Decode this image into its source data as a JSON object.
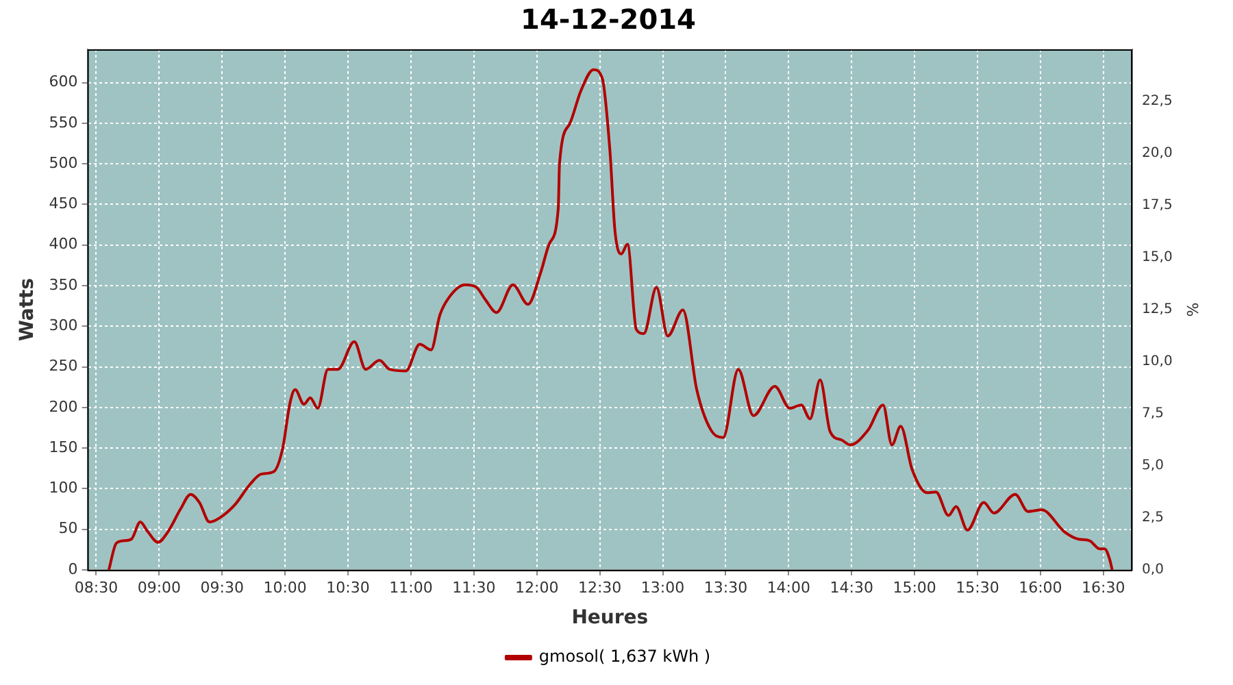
{
  "chart_data": {
    "type": "line",
    "title": "14-12-2014",
    "xlabel": "Heures",
    "ylabel": "Watts",
    "y2label": "%",
    "x": [
      8.6,
      8.66,
      8.72,
      8.78,
      8.85,
      8.91,
      8.99,
      9.07,
      9.17,
      9.25,
      9.32,
      9.4,
      9.48,
      9.6,
      9.72,
      9.81,
      9.91,
      9.98,
      10.04,
      10.08,
      10.15,
      10.2,
      10.26,
      10.34,
      10.42,
      10.55,
      10.64,
      10.75,
      10.83,
      10.96,
      11.07,
      11.16,
      11.23,
      11.3,
      11.43,
      11.52,
      11.59,
      11.68,
      11.81,
      11.93,
      12.03,
      12.1,
      12.17,
      12.18,
      12.26,
      12.35,
      12.45,
      12.52,
      12.58,
      12.62,
      12.67,
      12.72,
      12.79,
      12.85,
      12.95,
      13.04,
      13.16,
      13.27,
      13.38,
      13.48,
      13.6,
      13.72,
      13.89,
      14.01,
      14.1,
      14.17,
      14.25,
      14.33,
      14.42,
      14.49,
      14.63,
      14.75,
      14.82,
      14.89,
      14.98,
      15.1,
      15.17,
      15.27,
      15.33,
      15.42,
      15.55,
      15.63,
      15.8,
      15.9,
      16.01,
      16.19,
      16.3,
      16.39,
      16.47,
      16.51,
      16.55,
      16.57
    ],
    "series": [
      {
        "name": "gmosol( 1,637 kWh )",
        "color": "#b20000",
        "values": [
          0,
          33,
          36,
          38,
          59,
          47,
          34,
          47,
          75,
          93,
          83,
          59,
          64,
          80,
          105,
          118,
          121,
          149,
          206,
          222,
          204,
          212,
          199,
          247,
          247,
          281,
          247,
          258,
          247,
          245,
          278,
          271,
          314,
          335,
          351,
          348,
          333,
          317,
          351,
          327,
          366,
          402,
          445,
          500,
          549,
          590,
          616,
          605,
          517,
          418,
          389,
          401,
          296,
          291,
          348,
          288,
          320,
          222,
          173,
          163,
          247,
          190,
          226,
          199,
          203,
          186,
          234,
          170,
          160,
          154,
          172,
          203,
          154,
          177,
          124,
          95,
          96,
          67,
          78,
          49,
          83,
          70,
          93,
          72,
          74,
          47,
          38,
          36,
          26,
          26,
          13,
          0
        ]
      }
    ],
    "xlim": [
      8.43,
      16.73
    ],
    "xticks": [
      {
        "value": 8.5,
        "label": "08:30"
      },
      {
        "value": 9,
        "label": "09:00"
      },
      {
        "value": 9.5,
        "label": "09:30"
      },
      {
        "value": 10,
        "label": "10:00"
      },
      {
        "value": 10.5,
        "label": "10:30"
      },
      {
        "value": 11,
        "label": "11:00"
      },
      {
        "value": 11.5,
        "label": "11:30"
      },
      {
        "value": 12,
        "label": "12:00"
      },
      {
        "value": 12.5,
        "label": "12:30"
      },
      {
        "value": 13,
        "label": "13:00"
      },
      {
        "value": 13.5,
        "label": "13:30"
      },
      {
        "value": 14,
        "label": "14:00"
      },
      {
        "value": 14.5,
        "label": "14:30"
      },
      {
        "value": 15,
        "label": "15:00"
      },
      {
        "value": 15.5,
        "label": "15:30"
      },
      {
        "value": 16,
        "label": "16:00"
      },
      {
        "value": 16.5,
        "label": "16:30"
      }
    ],
    "ylim": [
      0,
      641
    ],
    "yticks": [
      0,
      50,
      100,
      150,
      200,
      250,
      300,
      350,
      400,
      450,
      500,
      550,
      600
    ],
    "y2lim": [
      0,
      25
    ],
    "y2ticks": [
      {
        "value": 0,
        "label": "0,0"
      },
      {
        "value": 2.5,
        "label": "2,5"
      },
      {
        "value": 5,
        "label": "5,0"
      },
      {
        "value": 7.5,
        "label": "7,5"
      },
      {
        "value": 10,
        "label": "10,0"
      },
      {
        "value": 12.5,
        "label": "12,5"
      },
      {
        "value": 15,
        "label": "15,0"
      },
      {
        "value": 17.5,
        "label": "17,5"
      },
      {
        "value": 20,
        "label": "20,0"
      },
      {
        "value": 22.5,
        "label": "22,5"
      }
    ],
    "grid": true,
    "legend": "bottom",
    "marker": "none",
    "line_style": "solid"
  }
}
